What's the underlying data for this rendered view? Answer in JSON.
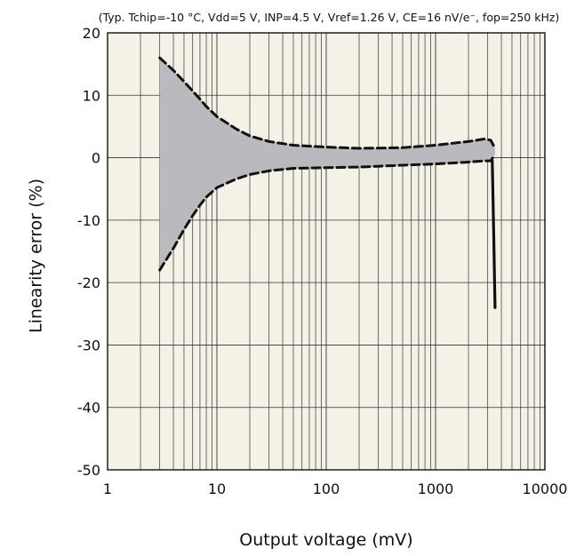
{
  "chart_data": {
    "type": "line",
    "title": "",
    "subtitle": "(Typ. Tchip=-10 °C, Vdd=5 V, INP=4.5 V, Vref=1.26 V, CE=16 nV/e⁻, fop=250 kHz)",
    "xlabel": "Output voltage (mV)",
    "ylabel": "Linearity error (%)",
    "x_scale": "log",
    "xlim": [
      1,
      10000
    ],
    "ylim": [
      -50,
      20
    ],
    "x_ticks": [
      1,
      10,
      100,
      1000,
      10000
    ],
    "x_tick_labels": [
      "1",
      "10",
      "100",
      "1000",
      "10000"
    ],
    "y_ticks": [
      20,
      10,
      0,
      -10,
      -20,
      -30,
      -40,
      -50
    ],
    "y_tick_labels": [
      "20",
      "10",
      "0",
      "-10",
      "-20",
      "-30",
      "-40",
      "-50"
    ],
    "grid": true,
    "legend": "none",
    "background_color": "#f4f1e6",
    "band_color": "#b9b9be",
    "series": [
      {
        "style": "dashed",
        "x": [
          3,
          4,
          5,
          6,
          7,
          8,
          10,
          15,
          20,
          30,
          50,
          100,
          200,
          500,
          1000,
          2000,
          2800,
          3200,
          3500
        ],
        "y": [
          16,
          14,
          12.2,
          10.7,
          9.4,
          8.2,
          6.6,
          4.6,
          3.5,
          2.6,
          2.0,
          1.7,
          1.5,
          1.6,
          2.0,
          2.6,
          3.0,
          2.8,
          1.5
        ]
      },
      {
        "style": "dashed",
        "x": [
          3,
          4,
          5,
          6,
          7,
          8,
          10,
          15,
          20,
          30,
          50,
          100,
          200,
          500,
          1000,
          2000,
          2800,
          3200,
          3500
        ],
        "y": [
          -18,
          -14.5,
          -11.5,
          -9.3,
          -7.6,
          -6.3,
          -4.8,
          -3.4,
          -2.7,
          -2.1,
          -1.7,
          -1.6,
          -1.5,
          -1.2,
          -1.0,
          -0.7,
          -0.5,
          -0.5,
          0.5
        ]
      },
      {
        "style": "solid",
        "x": [
          3300,
          3400,
          3500
        ],
        "y": [
          -0.5,
          -12,
          -24
        ]
      }
    ]
  }
}
